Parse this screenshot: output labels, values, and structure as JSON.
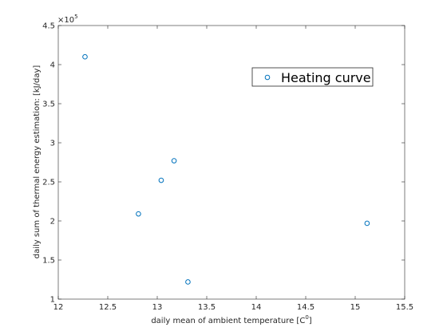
{
  "chart_data": {
    "type": "scatter",
    "xlabel": "daily mean of ambient temperature [C",
    "xlabel_superscript": "0",
    "xlabel_suffix": "]",
    "ylabel": "daily sum of thermal energy estimation: [kJ/day]",
    "y_exponent_base": "×10",
    "y_exponent_power": "5",
    "xlim": [
      12,
      15.5
    ],
    "ylim": [
      100000,
      450000
    ],
    "xticks": [
      12,
      12.5,
      13,
      13.5,
      14,
      14.5,
      15,
      15.5
    ],
    "xtick_labels": [
      "12",
      "12.5",
      "13",
      "13.5",
      "14",
      "14.5",
      "15",
      "15.5"
    ],
    "yticks": [
      100000,
      150000,
      200000,
      250000,
      300000,
      350000,
      400000,
      450000
    ],
    "ytick_labels": [
      "1",
      "1.5",
      "2",
      "2.5",
      "3",
      "3.5",
      "4",
      "4.5"
    ],
    "grid": false,
    "legend_placement": "top-right",
    "series": [
      {
        "name": "Heating curve",
        "marker": "circle-open",
        "color": "#0072BD",
        "x": [
          12.27,
          12.81,
          13.04,
          13.17,
          13.31,
          15.12
        ],
        "y": [
          410000,
          209000,
          252000,
          277000,
          122000,
          197000
        ]
      }
    ]
  }
}
